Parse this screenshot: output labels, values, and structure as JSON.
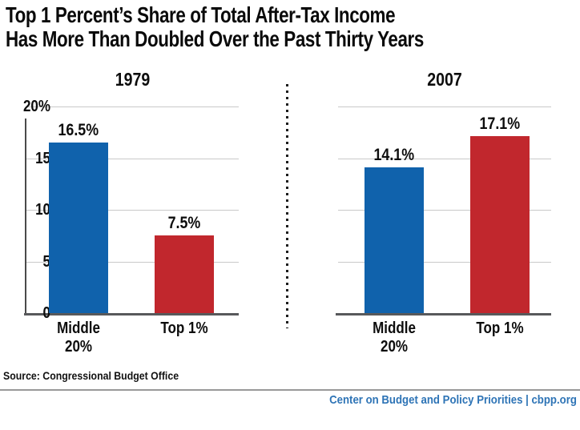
{
  "title": {
    "line1": "Top 1 Percent’s Share of Total After-Tax Income",
    "line2": "Has More Than Doubled Over the Past Thirty Years"
  },
  "source": "Source: Congressional Budget Office",
  "footer": "Center on Budget and Policy Priorities | cbpp.org",
  "colors": {
    "bar_blue": "#1062AC",
    "bar_red": "#C1272D",
    "footer_blue": "#2E74B6",
    "gridline": "#C9C9C9",
    "axis": "#58595B",
    "divider_dots": "#1C1C1C"
  },
  "chart_data": [
    {
      "type": "bar",
      "title": "1979",
      "categories": [
        "Middle\n20%",
        "Top 1%"
      ],
      "values": [
        16.5,
        7.5
      ],
      "value_labels": [
        "16.5%",
        "7.5%"
      ],
      "bar_colors": [
        "#1062AC",
        "#C1272D"
      ],
      "ylim": [
        0,
        20
      ],
      "yticks": [
        "20%",
        "15",
        "10",
        "5",
        "0"
      ],
      "grid": true,
      "gridline_values": [
        20,
        15,
        10,
        5
      ],
      "legend": "none"
    },
    {
      "type": "bar",
      "title": "2007",
      "categories": [
        "Middle\n20%",
        "Top 1%"
      ],
      "values": [
        14.1,
        17.1
      ],
      "value_labels": [
        "14.1%",
        "17.1%"
      ],
      "bar_colors": [
        "#1062AC",
        "#C1272D"
      ],
      "ylim": [
        0,
        20
      ],
      "yticks": [],
      "grid": true,
      "gridline_values": [
        20,
        15,
        10,
        5
      ],
      "legend": "none"
    }
  ]
}
